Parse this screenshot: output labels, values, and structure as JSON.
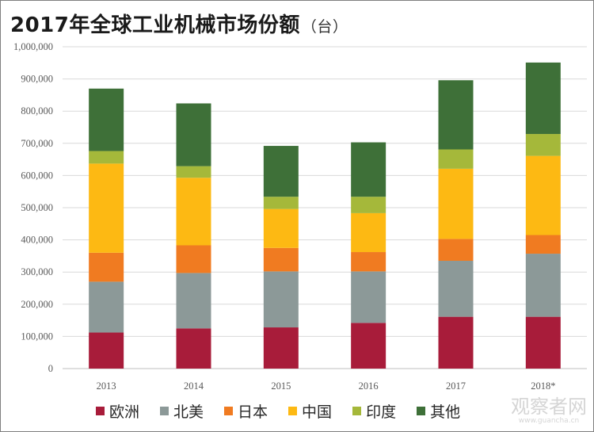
{
  "title": "2017年全球工业机械市场份额",
  "title_unit": "（台）",
  "watermark": {
    "text": "观察者网",
    "url": "www.guancha.cn"
  },
  "chart_data": {
    "type": "bar",
    "stacked": true,
    "categories": [
      "2013",
      "2014",
      "2015",
      "2016",
      "2017",
      "2018*"
    ],
    "ylim": [
      0,
      1000000
    ],
    "y_ticks": [
      "0",
      "100,000",
      "200,000",
      "300,000",
      "400,000",
      "500,000",
      "600,000",
      "700,000",
      "800,000",
      "900,000",
      "1,000,000"
    ],
    "y_tick_values": [
      0,
      100000,
      200000,
      300000,
      400000,
      500000,
      600000,
      700000,
      800000,
      900000,
      1000000
    ],
    "grid": true,
    "legend_position": "bottom",
    "series": [
      {
        "name": "欧洲",
        "color": "#a81c3a",
        "values": [
          112000,
          125000,
          128000,
          142000,
          161000,
          161000
        ]
      },
      {
        "name": "北美",
        "color": "#8c9998",
        "values": [
          158000,
          172000,
          174000,
          160000,
          174000,
          196000
        ]
      },
      {
        "name": "日本",
        "color": "#f07b21",
        "values": [
          90000,
          86000,
          73000,
          60000,
          68000,
          58000
        ]
      },
      {
        "name": "中国",
        "color": "#fdb913",
        "values": [
          277000,
          210000,
          121000,
          121000,
          218000,
          246000
        ]
      },
      {
        "name": "印度",
        "color": "#a5b83a",
        "values": [
          39000,
          36000,
          38000,
          51000,
          60000,
          68000
        ]
      },
      {
        "name": "其他",
        "color": "#3e7038",
        "values": [
          194000,
          195000,
          158000,
          169000,
          215000,
          222000
        ]
      }
    ]
  }
}
